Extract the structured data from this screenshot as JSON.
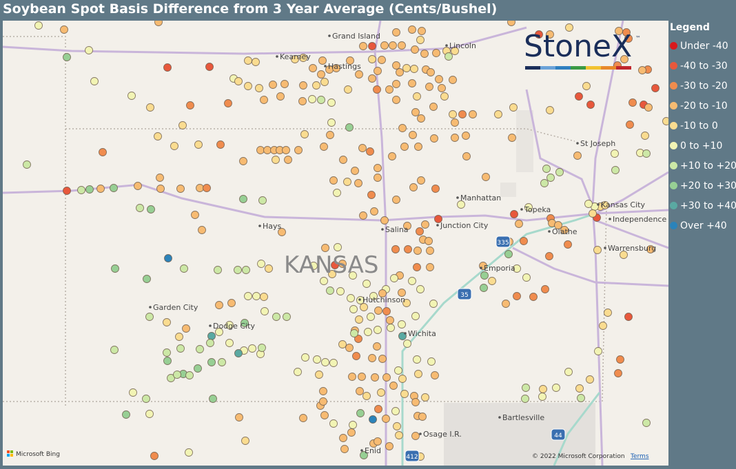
{
  "header": {
    "title": "Soybean Spot Basis Difference from 3 Year Average (Cents/Bushel)"
  },
  "map": {
    "state_label": "KANSAS",
    "cities": [
      "Grand Island",
      "Kearney",
      "Hastings",
      "Lincoln",
      "St Joseph",
      "Manhattan",
      "Topeka",
      "Kansas City",
      "Independence",
      "Olathe",
      "Hays",
      "Salina",
      "Junction City",
      "Emporia",
      "Warrensburg",
      "Garden City",
      "Dodge City",
      "Hutchinson",
      "Wichita",
      "Bartlesville",
      "Osage I.R.",
      "Enid"
    ],
    "highway_shields": [
      "335",
      "35",
      "44",
      "412"
    ]
  },
  "logo": {
    "text": "StoneX",
    "mark": "™"
  },
  "attribution": {
    "provider": "Microsoft Bing",
    "copyright": "© 2022 Microsoft Corporation",
    "terms": "Terms"
  },
  "legend": {
    "title": "Legend",
    "items": [
      {
        "label": "Under -40",
        "color": "#d7191c"
      },
      {
        "label": "-40 to -30",
        "color": "#e8583c"
      },
      {
        "label": "-30 to -20",
        "color": "#f08c4e"
      },
      {
        "label": "-20 to -10",
        "color": "#f7bb72"
      },
      {
        "label": "-10 to 0",
        "color": "#fadc90"
      },
      {
        "label": "0 to +10",
        "color": "#f2f4b4"
      },
      {
        "label": "+10 to +20",
        "color": "#cce8a6"
      },
      {
        "label": "+20 to +30",
        "color": "#97cf94"
      },
      {
        "label": "+30 to +40",
        "color": "#5aa9a2"
      },
      {
        "label": "Over +40",
        "color": "#2b83ba"
      }
    ]
  }
}
